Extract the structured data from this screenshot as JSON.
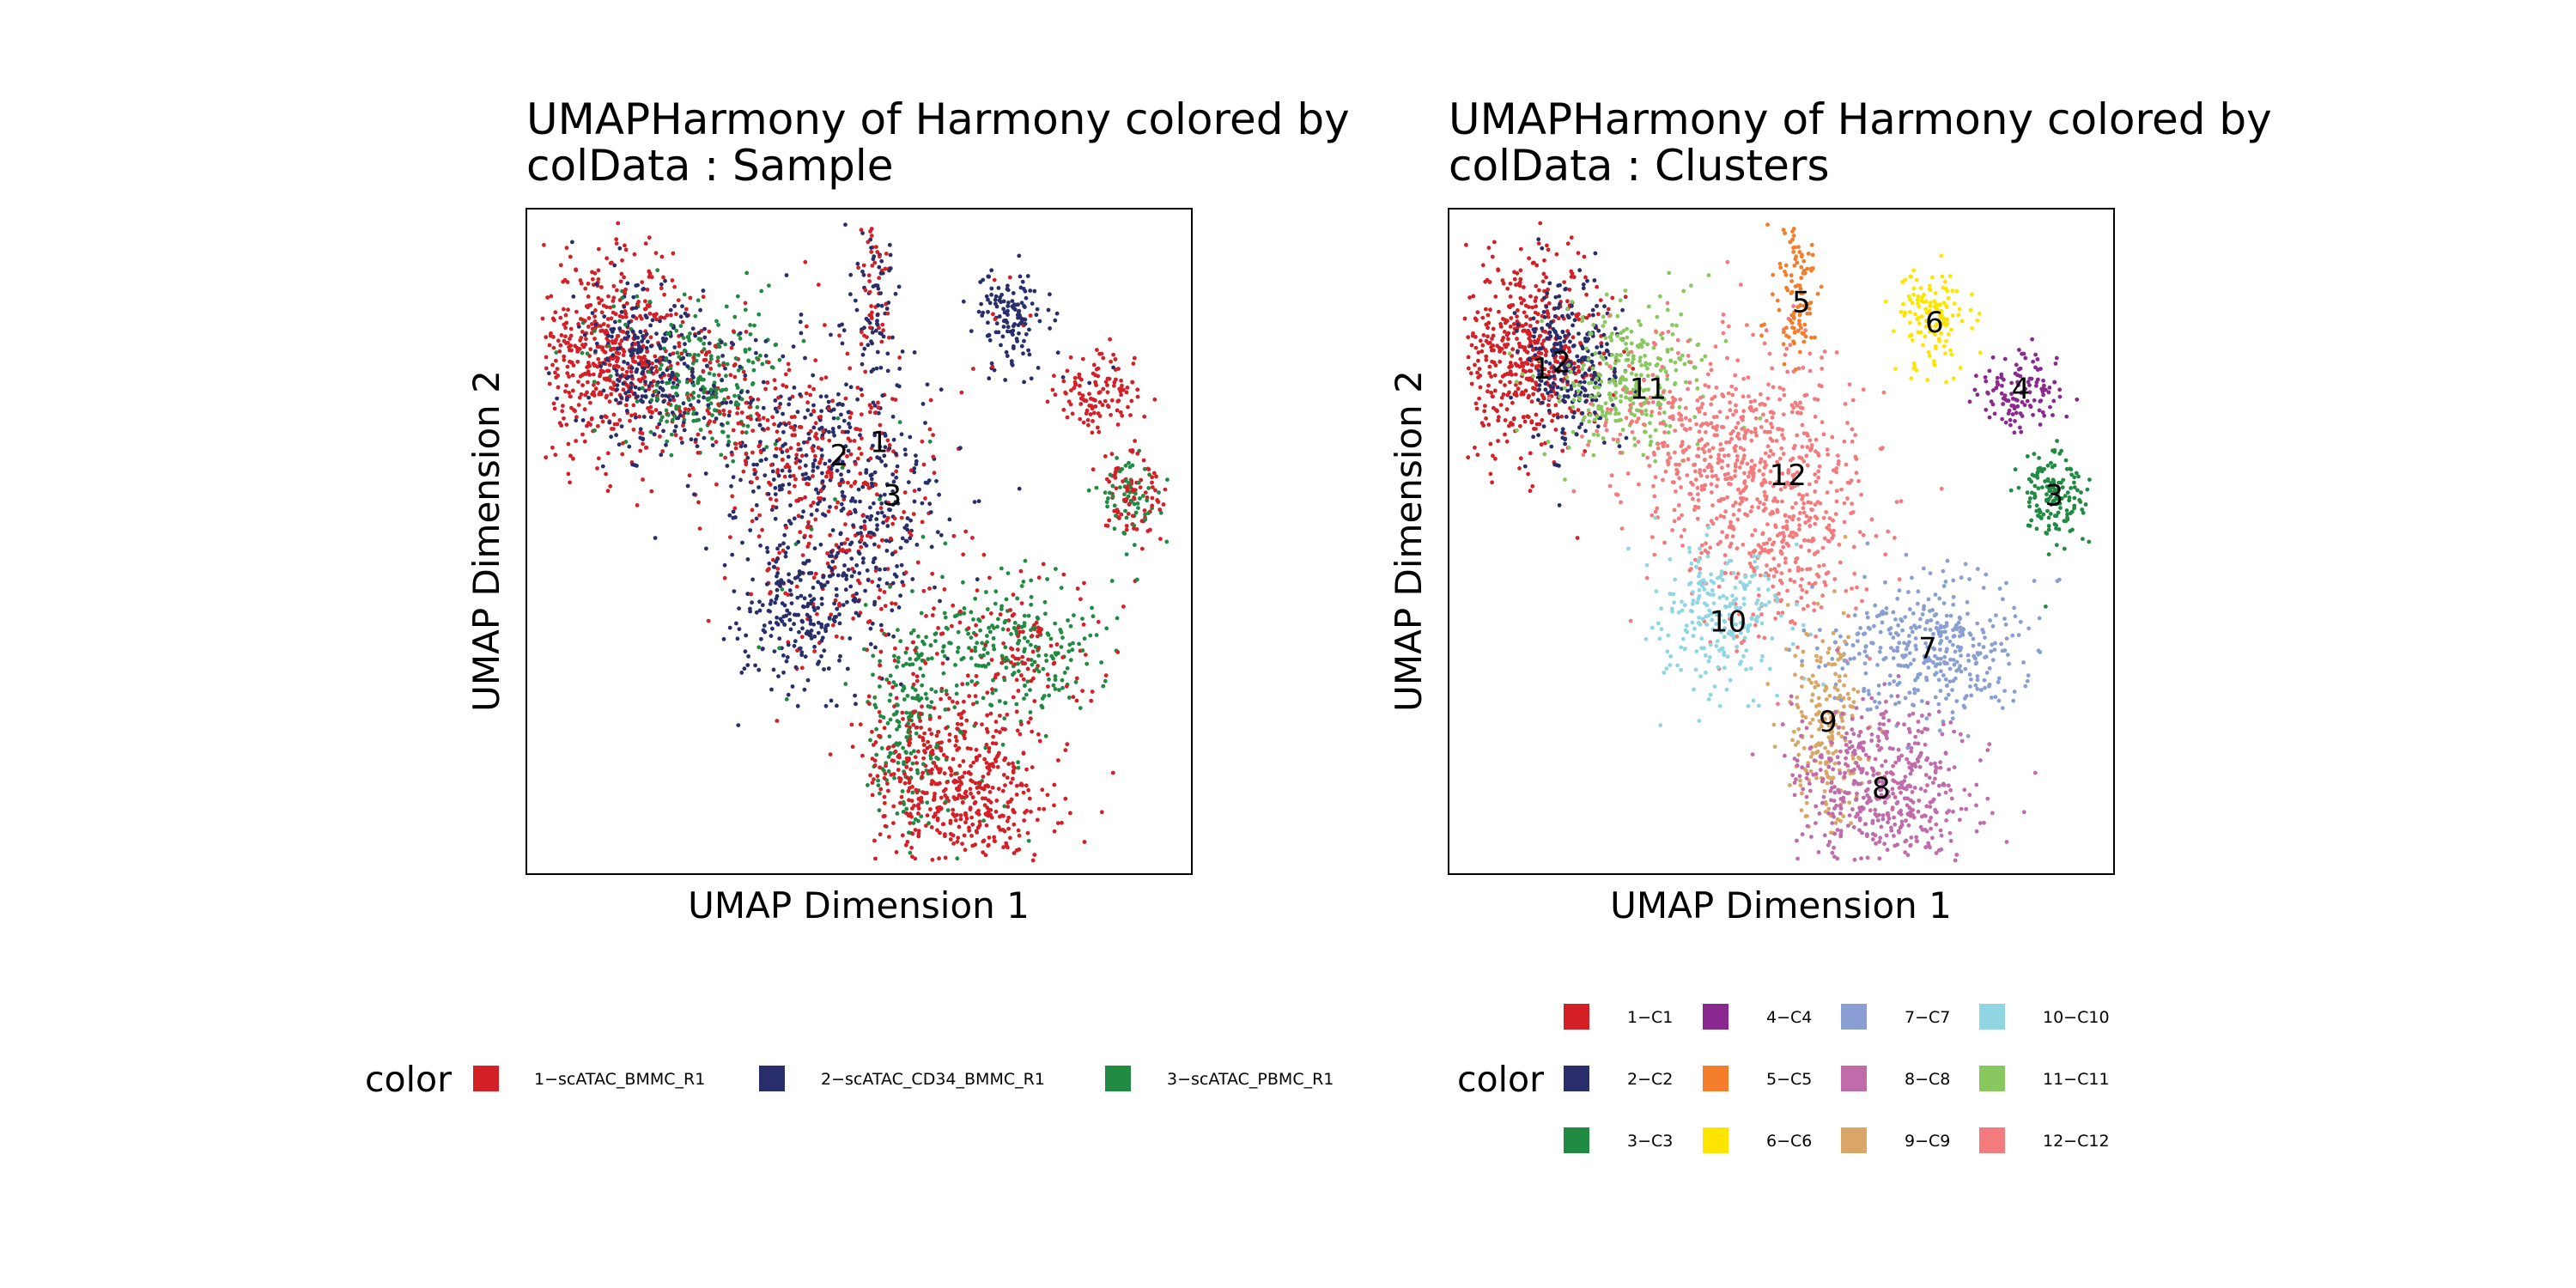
{
  "chart_data": [
    {
      "type": "scatter",
      "title_line1": "UMAPHarmony of Harmony  colored by",
      "title_line2": "colData :  Sample",
      "xlabel": "UMAP Dimension 1",
      "ylabel": "UMAP Dimension 2",
      "grid": false,
      "legend_placement": "bottom",
      "legend_title": "color",
      "legend": [
        {
          "label": "1−scATAC_BMMC_R1",
          "color": "#D51F26"
        },
        {
          "label": "2−scATAC_CD34_BMMC_R1",
          "color": "#272E6A"
        },
        {
          "label": "3−scATAC_PBMC_R1",
          "color": "#208A42"
        }
      ],
      "labels": [
        {
          "text": "1",
          "x": 0.53,
          "y": 0.65
        },
        {
          "text": "2",
          "x": 0.47,
          "y": 0.63
        },
        {
          "text": "3",
          "x": 0.55,
          "y": 0.57
        }
      ]
    },
    {
      "type": "scatter",
      "title_line1": "UMAPHarmony of Harmony  colored by",
      "title_line2": "colData :  Clusters",
      "xlabel": "UMAP Dimension 1",
      "ylabel": "UMAP Dimension 2",
      "grid": false,
      "legend_placement": "bottom",
      "legend_title": "color",
      "legend": [
        {
          "label": "1−C1",
          "color": "#D51F26"
        },
        {
          "label": "2−C2",
          "color": "#272E6A"
        },
        {
          "label": "3−C3",
          "color": "#208A42"
        },
        {
          "label": "4−C4",
          "color": "#89288F"
        },
        {
          "label": "5−C5",
          "color": "#F47D2B"
        },
        {
          "label": "6−C6",
          "color": "#FEE500"
        },
        {
          "label": "7−C7",
          "color": "#8A9FD1"
        },
        {
          "label": "8−C8",
          "color": "#C06CAB"
        },
        {
          "label": "9−C9",
          "color": "#D8A767"
        },
        {
          "label": "10−C10",
          "color": "#90D5E4"
        },
        {
          "label": "11−C11",
          "color": "#89C75F"
        },
        {
          "label": "12−C12",
          "color": "#F37B7D"
        }
      ],
      "labels": [
        {
          "text": "1",
          "x": 0.14,
          "y": 0.76
        },
        {
          "text": "2",
          "x": 0.17,
          "y": 0.77
        },
        {
          "text": "3",
          "x": 0.91,
          "y": 0.57
        },
        {
          "text": "4",
          "x": 0.86,
          "y": 0.73
        },
        {
          "text": "5",
          "x": 0.53,
          "y": 0.86
        },
        {
          "text": "6",
          "x": 0.73,
          "y": 0.83
        },
        {
          "text": "7",
          "x": 0.72,
          "y": 0.34
        },
        {
          "text": "8",
          "x": 0.65,
          "y": 0.13
        },
        {
          "text": "9",
          "x": 0.57,
          "y": 0.23
        },
        {
          "text": "10",
          "x": 0.42,
          "y": 0.38
        },
        {
          "text": "11",
          "x": 0.3,
          "y": 0.73
        },
        {
          "text": "12",
          "x": 0.51,
          "y": 0.6
        }
      ]
    }
  ]
}
